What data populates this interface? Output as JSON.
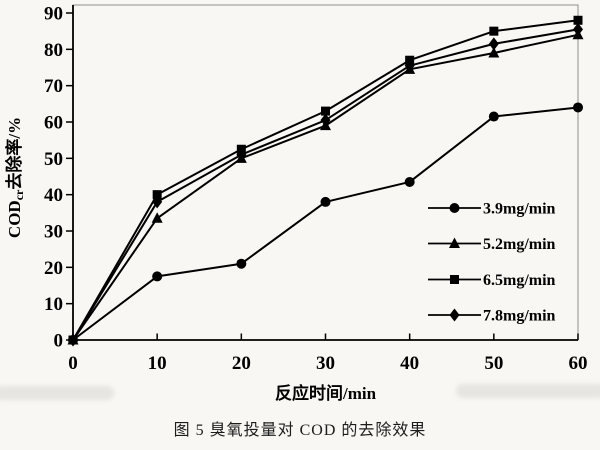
{
  "figure": {
    "caption": "图 5  臭氧投量对 COD 的去除效果"
  },
  "chart_data": {
    "type": "line",
    "title": "",
    "xlabel": "反应时间/min",
    "ylabel": "CODcr去除率/%",
    "ylabel_parts": [
      {
        "t": "COD",
        "sub": false
      },
      {
        "t": "cr",
        "sub": true
      },
      {
        "t": "去除率/%",
        "sub": false
      }
    ],
    "xlim": [
      0,
      60
    ],
    "ylim": [
      0,
      90
    ],
    "xticks": [
      0,
      10,
      20,
      30,
      40,
      50,
      60
    ],
    "yticks": [
      0,
      10,
      20,
      30,
      40,
      50,
      60,
      70,
      80,
      90
    ],
    "grid": false,
    "legend_position": "inside right",
    "line_color": "#000000",
    "x": [
      0,
      10,
      20,
      30,
      40,
      50,
      60
    ],
    "series": [
      {
        "name": "3.9mg/min",
        "marker": "circle",
        "values": [
          0,
          17.5,
          21,
          38,
          43.5,
          61.5,
          64
        ]
      },
      {
        "name": "5.2mg/min",
        "marker": "triangle",
        "values": [
          0,
          33.5,
          50,
          59,
          74.5,
          79,
          84
        ]
      },
      {
        "name": "6.5mg/min",
        "marker": "square",
        "values": [
          0,
          40,
          52.5,
          63,
          77,
          85,
          88
        ]
      },
      {
        "name": "7.8mg/min",
        "marker": "diamond",
        "values": [
          0,
          38,
          51,
          60.5,
          75.5,
          81.5,
          85.5
        ]
      }
    ]
  }
}
